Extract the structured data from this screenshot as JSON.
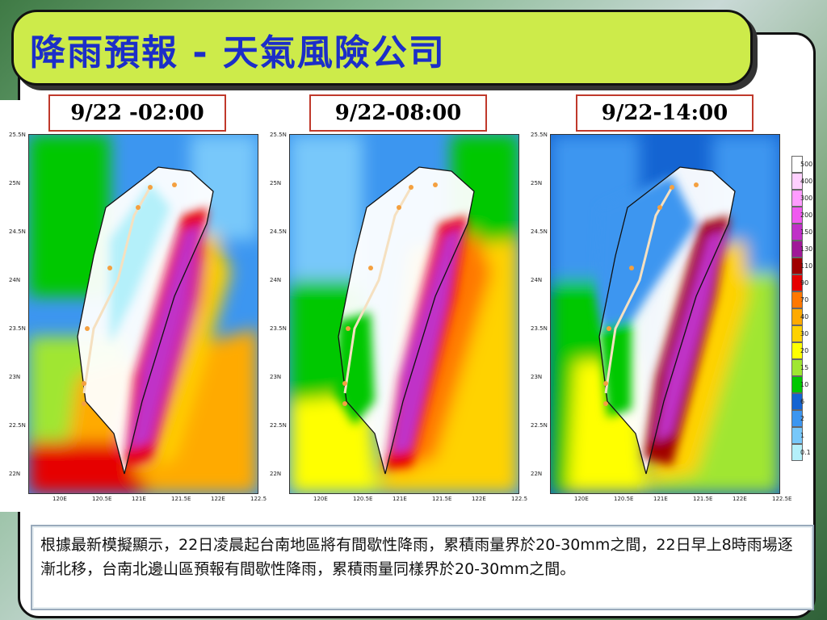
{
  "slide": {
    "title": "降雨預報 - 天氣風險公司",
    "time_labels": [
      "9/22 -02:00",
      "9/22-08:00",
      "9/22-14:00"
    ],
    "lat_ticks": [
      "25.5N",
      "25N",
      "24.5N",
      "24N",
      "23.5N",
      "23N",
      "22.5N",
      "22N"
    ],
    "lon_ticks_1": [
      "120E",
      "120.5E",
      "121E",
      "121.5E",
      "122E",
      "122.5"
    ],
    "lon_ticks_2": [
      "120E",
      "120.5E",
      "121E",
      "121.5E",
      "122E",
      "122.5"
    ],
    "lon_ticks_3": [
      "120E",
      "120.5E",
      "121E",
      "121.5E",
      "122E",
      "122.5E"
    ],
    "legend": {
      "values": [
        "500",
        "400",
        "300",
        "200",
        "150",
        "130",
        "110",
        "90",
        "70",
        "40",
        "30",
        "20",
        "15",
        "10",
        "6",
        "2",
        "1",
        "0.1"
      ],
      "colors": [
        "#ffffff",
        "#ffd0ff",
        "#ff9cff",
        "#f05af0",
        "#c030c8",
        "#a01898",
        "#a00000",
        "#e60000",
        "#ff7800",
        "#ffaa00",
        "#ffd200",
        "#ffff00",
        "#a0e632",
        "#00c800",
        "#1464d2",
        "#3c96f0",
        "#78c8fa",
        "#b4f0fa"
      ]
    },
    "caption": "根據最新模擬顯示，22日凌晨起台南地區將有間歇性降雨，累積雨量界於20-30mm之間，22日早上8時雨場逐漸北移，台南北邊山區預報有間歇性降雨，累積雨量同樣界於20-30mm之間。"
  }
}
